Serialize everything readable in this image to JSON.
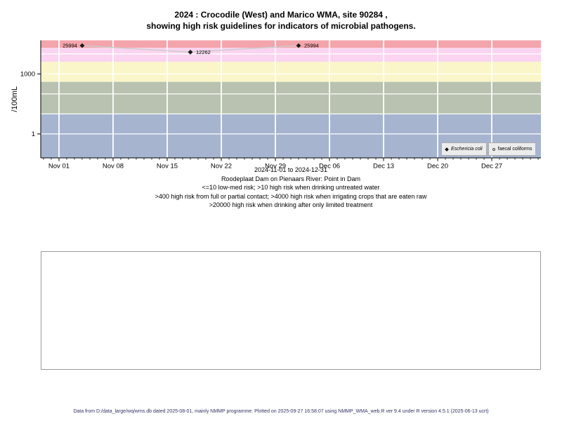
{
  "title": {
    "line1": "2024 : Crocodile (West) and Marico WMA, site 90284 ,",
    "line2": "showing high risk guidelines for indicators of microbial pathogens."
  },
  "chart_data": {
    "type": "scatter",
    "ylabel": "/100mL",
    "y_scale": "log10",
    "y_range": [
      0.0637,
      47600
    ],
    "y_ticks": [
      {
        "value": 1000,
        "label": "1000"
      },
      {
        "value": 1,
        "label": "1"
      }
    ],
    "gridline_values": [
      1,
      10,
      100,
      1000,
      10000
    ],
    "x_axis": {
      "range_label": "2024-11-01 to 2024-12-31",
      "start_date": "2024-11-01",
      "axis_range_days": [
        -2.36,
        62.36
      ],
      "major_ticks": [
        {
          "day": 0,
          "label": "Nov 01"
        },
        {
          "day": 7,
          "label": "Nov 08"
        },
        {
          "day": 14,
          "label": "Nov 15"
        },
        {
          "day": 21,
          "label": "Nov 22"
        },
        {
          "day": 28,
          "label": "Nov 29"
        },
        {
          "day": 35,
          "label": "Dec 06"
        },
        {
          "day": 42,
          "label": "Dec 13"
        },
        {
          "day": 49,
          "label": "Dec 20"
        },
        {
          "day": 56,
          "label": "Dec 27"
        }
      ],
      "minor_tick_every_days": 1
    },
    "risk_bands": [
      {
        "min": 20000,
        "max": 47600,
        "color": "#f4a4ab",
        "meaning": ">20000 high risk when drinking after only limited treatment"
      },
      {
        "min": 4000,
        "max": 20000,
        "color": "#fad4f0",
        "meaning": ">4000 high risk when irrigating crops that are eaten raw"
      },
      {
        "min": 400,
        "max": 4000,
        "color": "#faf6c9",
        "meaning": ">400 high risk from full or partial contact"
      },
      {
        "min": 10,
        "max": 400,
        "color": "#b9c2b0",
        "meaning": ">10 high risk when drinking untreated water"
      },
      {
        "min": 0.0637,
        "max": 10,
        "color": "#a6b4d0",
        "meaning": "<=10 low-med risk"
      }
    ],
    "series": [
      {
        "name": "Eschericia coli",
        "symbol": "filled-diamond",
        "line_color": "#cccccc",
        "point_color": "#1a1a1a",
        "points": [
          {
            "date": "2024-11-04",
            "day": 3,
            "value": 25994,
            "label": "25994",
            "label_side": "left"
          },
          {
            "date": "2024-11-18",
            "day": 17,
            "value": 12262,
            "label": "12262",
            "label_side": "right"
          },
          {
            "date": "2024-12-02",
            "day": 31,
            "value": 25994,
            "label": "25994",
            "label_side": "right"
          }
        ]
      },
      {
        "name": "faecal coliforms",
        "symbol": "open-circle",
        "line_color": "#cccccc",
        "point_color": "#1a1a1a",
        "points": []
      }
    ],
    "legend_position": "bottom-right",
    "grid": true
  },
  "caption": {
    "lines": [
      "Roodeplaat Dam on Pienaars River: Point in Dam",
      "<=10 low-med risk; >10 high risk when drinking untreated water",
      ">400 high risk from full or partial contact; >4000 high risk when irrigating crops that are eaten raw",
      ">20000 high risk when drinking after only limited treatment"
    ]
  },
  "footer": {
    "text": "Data from D:/data_large/wq/wms.db dated 2025-08-01, mainly NMMP programme. Plotted on 2025-09-27 16:58:07 using NMMP_WMA_web.R ver 9.4 under R version 4.5.1 (2025-06-13 ucrt)"
  }
}
